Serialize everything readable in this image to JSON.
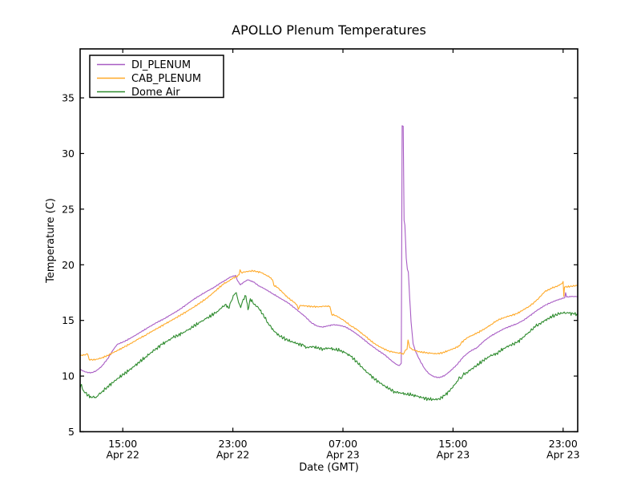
{
  "figure": {
    "background": "#ffffff",
    "text_color": "#000000"
  },
  "chart_data": {
    "type": "line",
    "title": "APOLLO Plenum Temperatures",
    "xlabel": "Date (GMT)",
    "ylabel": "Temperature (C)",
    "grid": false,
    "legend_position": "upper left",
    "x_unit": "hours since Apr 22 00:00 GMT",
    "xlim": [
      11.9,
      48.06
    ],
    "ylim": [
      5,
      39.4
    ],
    "yticks": [
      5,
      10,
      15,
      20,
      25,
      30,
      35
    ],
    "xticks": [
      {
        "t": 15,
        "time": "15:00",
        "date": "Apr 22"
      },
      {
        "t": 23,
        "time": "23:00",
        "date": "Apr 22"
      },
      {
        "t": 31,
        "time": "07:00",
        "date": "Apr 23"
      },
      {
        "t": 39,
        "time": "15:00",
        "date": "Apr 23"
      },
      {
        "t": 47,
        "time": "23:00",
        "date": "Apr 23"
      }
    ],
    "series": [
      {
        "name": "DI_PLENUM",
        "color": "#A85CC4",
        "noise": 0.035,
        "points": [
          [
            11.9,
            10.6
          ],
          [
            12.15,
            10.45
          ],
          [
            12.45,
            10.3
          ],
          [
            12.75,
            10.32
          ],
          [
            13.05,
            10.45
          ],
          [
            13.45,
            10.85
          ],
          [
            13.9,
            11.55
          ],
          [
            14.3,
            12.35
          ],
          [
            14.6,
            12.85
          ],
          [
            15.1,
            13.1
          ],
          [
            15.7,
            13.5
          ],
          [
            16.3,
            13.95
          ],
          [
            16.9,
            14.4
          ],
          [
            17.45,
            14.8
          ],
          [
            18.0,
            15.15
          ],
          [
            18.55,
            15.55
          ],
          [
            19.1,
            15.95
          ],
          [
            19.6,
            16.4
          ],
          [
            20.1,
            16.85
          ],
          [
            20.6,
            17.25
          ],
          [
            21.1,
            17.6
          ],
          [
            21.6,
            17.95
          ],
          [
            22.1,
            18.35
          ],
          [
            22.45,
            18.6
          ],
          [
            22.75,
            18.85
          ],
          [
            23.05,
            19.0
          ],
          [
            23.2,
            19.05
          ],
          [
            23.35,
            18.55
          ],
          [
            23.55,
            18.2
          ],
          [
            23.8,
            18.45
          ],
          [
            24.1,
            18.65
          ],
          [
            24.5,
            18.45
          ],
          [
            24.9,
            18.1
          ],
          [
            25.3,
            17.85
          ],
          [
            25.9,
            17.4
          ],
          [
            26.5,
            16.95
          ],
          [
            27.05,
            16.55
          ],
          [
            27.6,
            16.0
          ],
          [
            28.2,
            15.4
          ],
          [
            28.7,
            14.8
          ],
          [
            29.1,
            14.5
          ],
          [
            29.5,
            14.4
          ],
          [
            29.9,
            14.5
          ],
          [
            30.3,
            14.62
          ],
          [
            30.8,
            14.55
          ],
          [
            31.2,
            14.4
          ],
          [
            31.7,
            14.05
          ],
          [
            32.3,
            13.5
          ],
          [
            32.9,
            12.9
          ],
          [
            33.5,
            12.35
          ],
          [
            34.05,
            11.9
          ],
          [
            34.6,
            11.3
          ],
          [
            34.9,
            11.05
          ],
          [
            35.1,
            10.95
          ],
          [
            35.24,
            11.15
          ],
          [
            35.3,
            32.5
          ],
          [
            35.38,
            32.45
          ],
          [
            35.44,
            24.0
          ],
          [
            35.5,
            23.55
          ],
          [
            35.6,
            20.6
          ],
          [
            35.68,
            19.6
          ],
          [
            35.75,
            19.35
          ],
          [
            35.85,
            17.0
          ],
          [
            35.95,
            14.9
          ],
          [
            36.1,
            12.9
          ],
          [
            36.25,
            12.3
          ],
          [
            36.45,
            11.75
          ],
          [
            36.7,
            11.15
          ],
          [
            36.95,
            10.65
          ],
          [
            37.25,
            10.2
          ],
          [
            37.6,
            9.95
          ],
          [
            38.0,
            9.85
          ],
          [
            38.4,
            10.05
          ],
          [
            38.8,
            10.45
          ],
          [
            39.27,
            11.0
          ],
          [
            39.73,
            11.7
          ],
          [
            40.2,
            12.2
          ],
          [
            40.73,
            12.55
          ],
          [
            41.3,
            13.2
          ],
          [
            41.75,
            13.6
          ],
          [
            42.18,
            13.9
          ],
          [
            42.7,
            14.25
          ],
          [
            43.2,
            14.5
          ],
          [
            43.64,
            14.7
          ],
          [
            44.1,
            15.0
          ],
          [
            44.51,
            15.35
          ],
          [
            45.1,
            15.9
          ],
          [
            45.68,
            16.35
          ],
          [
            46.1,
            16.6
          ],
          [
            46.6,
            16.85
          ],
          [
            47.02,
            17.0
          ],
          [
            47.12,
            17.05
          ],
          [
            47.18,
            17.5
          ],
          [
            47.25,
            17.1
          ],
          [
            47.6,
            17.15
          ],
          [
            48.06,
            17.15
          ]
        ]
      },
      {
        "name": "CAB_PLENUM",
        "color": "#FFA928",
        "noise": 0.06,
        "points": [
          [
            11.9,
            11.85
          ],
          [
            12.2,
            11.9
          ],
          [
            12.45,
            11.97
          ],
          [
            12.55,
            11.5
          ],
          [
            12.85,
            11.45
          ],
          [
            13.15,
            11.52
          ],
          [
            13.5,
            11.65
          ],
          [
            13.9,
            11.85
          ],
          [
            14.3,
            12.1
          ],
          [
            14.7,
            12.35
          ],
          [
            15.1,
            12.6
          ],
          [
            15.6,
            12.95
          ],
          [
            16.1,
            13.3
          ],
          [
            16.6,
            13.65
          ],
          [
            17.1,
            14.0
          ],
          [
            17.6,
            14.35
          ],
          [
            18.1,
            14.7
          ],
          [
            18.6,
            15.05
          ],
          [
            19.1,
            15.4
          ],
          [
            19.6,
            15.78
          ],
          [
            20.1,
            16.15
          ],
          [
            20.6,
            16.55
          ],
          [
            21.1,
            17.0
          ],
          [
            21.6,
            17.5
          ],
          [
            22.0,
            17.95
          ],
          [
            22.35,
            18.3
          ],
          [
            22.65,
            18.5
          ],
          [
            22.95,
            18.75
          ],
          [
            23.25,
            18.95
          ],
          [
            23.45,
            19.1
          ],
          [
            23.52,
            19.55
          ],
          [
            23.62,
            19.3
          ],
          [
            23.85,
            19.35
          ],
          [
            24.15,
            19.42
          ],
          [
            24.45,
            19.45
          ],
          [
            24.75,
            19.4
          ],
          [
            25.05,
            19.3
          ],
          [
            25.35,
            19.12
          ],
          [
            25.65,
            18.9
          ],
          [
            25.88,
            18.65
          ],
          [
            25.98,
            18.15
          ],
          [
            26.25,
            17.95
          ],
          [
            26.55,
            17.6
          ],
          [
            26.95,
            17.1
          ],
          [
            27.35,
            16.7
          ],
          [
            27.62,
            16.45
          ],
          [
            27.76,
            16.0
          ],
          [
            27.88,
            16.35
          ],
          [
            28.25,
            16.3
          ],
          [
            28.75,
            16.25
          ],
          [
            29.25,
            16.22
          ],
          [
            29.75,
            16.3
          ],
          [
            30.05,
            16.25
          ],
          [
            30.18,
            15.55
          ],
          [
            30.55,
            15.4
          ],
          [
            31.05,
            15.0
          ],
          [
            31.55,
            14.55
          ],
          [
            32.05,
            14.15
          ],
          [
            32.65,
            13.55
          ],
          [
            33.25,
            12.95
          ],
          [
            33.85,
            12.5
          ],
          [
            34.35,
            12.25
          ],
          [
            34.85,
            12.1
          ],
          [
            35.2,
            12.05
          ],
          [
            35.38,
            11.95
          ],
          [
            35.52,
            12.3
          ],
          [
            35.66,
            12.4
          ],
          [
            35.73,
            13.25
          ],
          [
            35.85,
            12.55
          ],
          [
            36.1,
            12.35
          ],
          [
            36.5,
            12.2
          ],
          [
            36.95,
            12.1
          ],
          [
            37.4,
            12.05
          ],
          [
            37.81,
            12.0
          ],
          [
            38.25,
            12.1
          ],
          [
            38.7,
            12.3
          ],
          [
            39.1,
            12.5
          ],
          [
            39.45,
            12.7
          ],
          [
            39.6,
            13.0
          ],
          [
            40.03,
            13.45
          ],
          [
            40.45,
            13.7
          ],
          [
            40.73,
            13.85
          ],
          [
            41.3,
            14.25
          ],
          [
            41.8,
            14.65
          ],
          [
            42.18,
            15.0
          ],
          [
            42.7,
            15.25
          ],
          [
            43.2,
            15.45
          ],
          [
            43.64,
            15.6
          ],
          [
            44.1,
            15.95
          ],
          [
            44.51,
            16.25
          ],
          [
            45.0,
            16.7
          ],
          [
            45.68,
            17.6
          ],
          [
            46.2,
            17.9
          ],
          [
            46.6,
            18.1
          ],
          [
            46.9,
            18.3
          ],
          [
            47.0,
            18.5
          ],
          [
            47.05,
            17.15
          ],
          [
            47.1,
            18.0
          ],
          [
            47.5,
            18.05
          ],
          [
            48.06,
            18.15
          ]
        ]
      },
      {
        "name": "Dome Air",
        "color": "#2E8B2E",
        "noise": 0.13,
        "points": [
          [
            11.9,
            8.95
          ],
          [
            12.0,
            9.25
          ],
          [
            12.1,
            8.75
          ],
          [
            12.28,
            8.5
          ],
          [
            12.48,
            8.3
          ],
          [
            12.7,
            8.1
          ],
          [
            12.88,
            8.2
          ],
          [
            13.05,
            8.05
          ],
          [
            13.25,
            8.35
          ],
          [
            13.5,
            8.6
          ],
          [
            13.85,
            9.0
          ],
          [
            14.25,
            9.4
          ],
          [
            14.65,
            9.8
          ],
          [
            15.05,
            10.15
          ],
          [
            15.45,
            10.5
          ],
          [
            15.85,
            10.9
          ],
          [
            16.25,
            11.3
          ],
          [
            16.65,
            11.7
          ],
          [
            17.05,
            12.1
          ],
          [
            17.45,
            12.5
          ],
          [
            17.85,
            12.85
          ],
          [
            18.25,
            13.15
          ],
          [
            18.65,
            13.45
          ],
          [
            19.05,
            13.7
          ],
          [
            19.45,
            13.95
          ],
          [
            19.85,
            14.25
          ],
          [
            20.25,
            14.55
          ],
          [
            20.65,
            14.85
          ],
          [
            21.05,
            15.15
          ],
          [
            21.45,
            15.45
          ],
          [
            21.85,
            15.8
          ],
          [
            22.2,
            16.15
          ],
          [
            22.5,
            16.45
          ],
          [
            22.68,
            16.1
          ],
          [
            22.9,
            16.75
          ],
          [
            23.1,
            17.3
          ],
          [
            23.25,
            17.5
          ],
          [
            23.42,
            16.6
          ],
          [
            23.57,
            16.15
          ],
          [
            23.75,
            16.9
          ],
          [
            23.95,
            17.2
          ],
          [
            24.1,
            15.95
          ],
          [
            24.27,
            16.95
          ],
          [
            24.55,
            16.45
          ],
          [
            24.85,
            16.15
          ],
          [
            25.15,
            15.6
          ],
          [
            25.55,
            14.8
          ],
          [
            25.95,
            14.1
          ],
          [
            26.35,
            13.65
          ],
          [
            26.85,
            13.3
          ],
          [
            27.35,
            13.05
          ],
          [
            27.75,
            12.9
          ],
          [
            28.15,
            12.75
          ],
          [
            28.3,
            12.5
          ],
          [
            28.55,
            12.6
          ],
          [
            28.85,
            12.65
          ],
          [
            29.15,
            12.5
          ],
          [
            29.55,
            12.45
          ],
          [
            29.95,
            12.52
          ],
          [
            30.35,
            12.42
          ],
          [
            30.75,
            12.3
          ],
          [
            31.15,
            12.1
          ],
          [
            31.55,
            11.8
          ],
          [
            31.95,
            11.35
          ],
          [
            32.45,
            10.7
          ],
          [
            32.95,
            10.1
          ],
          [
            33.35,
            9.7
          ],
          [
            33.85,
            9.25
          ],
          [
            34.35,
            8.85
          ],
          [
            34.75,
            8.6
          ],
          [
            35.15,
            8.5
          ],
          [
            35.55,
            8.4
          ],
          [
            35.95,
            8.3
          ],
          [
            36.35,
            8.2
          ],
          [
            36.75,
            8.05
          ],
          [
            37.15,
            7.95
          ],
          [
            37.6,
            7.88
          ],
          [
            38.0,
            7.95
          ],
          [
            38.4,
            8.25
          ],
          [
            38.8,
            8.75
          ],
          [
            39.1,
            9.2
          ],
          [
            39.27,
            9.5
          ],
          [
            39.5,
            9.9
          ],
          [
            39.62,
            9.8
          ],
          [
            39.73,
            10.1
          ],
          [
            40.0,
            10.3
          ],
          [
            40.4,
            10.7
          ],
          [
            40.73,
            10.95
          ],
          [
            41.2,
            11.4
          ],
          [
            41.7,
            11.8
          ],
          [
            42.18,
            12.05
          ],
          [
            42.7,
            12.5
          ],
          [
            43.2,
            12.8
          ],
          [
            43.64,
            13.0
          ],
          [
            44.1,
            13.5
          ],
          [
            44.51,
            13.95
          ],
          [
            45.0,
            14.45
          ],
          [
            45.68,
            15.0
          ],
          [
            46.2,
            15.35
          ],
          [
            46.7,
            15.6
          ],
          [
            47.02,
            15.68
          ],
          [
            47.4,
            15.65
          ],
          [
            47.75,
            15.58
          ],
          [
            48.06,
            15.55
          ]
        ]
      }
    ]
  }
}
